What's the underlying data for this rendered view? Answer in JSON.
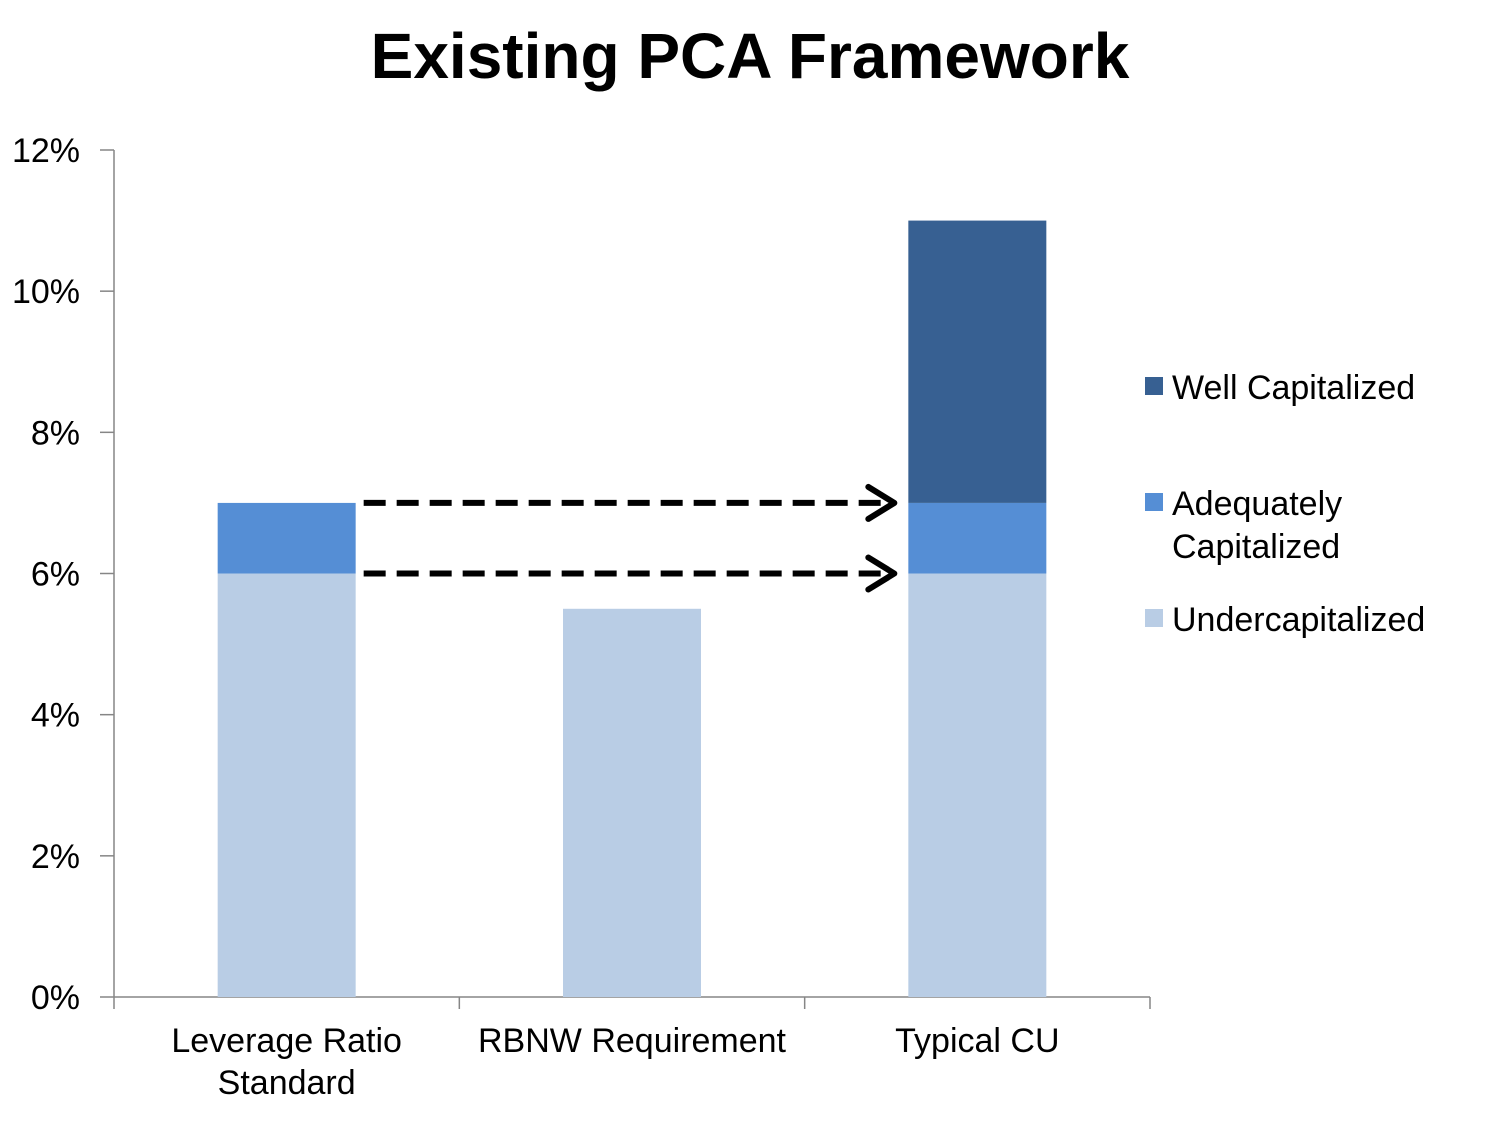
{
  "chart_data": {
    "type": "bar",
    "stacked": true,
    "title": "Existing PCA Framework",
    "categories": [
      [
        "Leverage Ratio",
        "Standard"
      ],
      [
        "RBNW Requirement"
      ],
      [
        "Typical CU"
      ]
    ],
    "series": [
      {
        "name": "Undercapitalized",
        "color": "#b9cde5",
        "values": [
          6,
          5.5,
          6
        ]
      },
      {
        "name": "Adequately Capitalized",
        "color": "#558ed5",
        "values": [
          1,
          0,
          1
        ]
      },
      {
        "name": "Well Capitalized",
        "color": "#376092",
        "values": [
          0,
          0,
          4
        ]
      }
    ],
    "legend_order": [
      {
        "series": 2,
        "lines": [
          "Well Capitalized"
        ]
      },
      {
        "series": 1,
        "lines": [
          "Adequately",
          "Capitalized"
        ]
      },
      {
        "series": 0,
        "lines": [
          "Undercapitalized"
        ]
      }
    ],
    "legend_position": "right",
    "ylim": [
      0,
      12
    ],
    "yticks": [
      0,
      2,
      4,
      6,
      8,
      10,
      12
    ],
    "ytick_labels": [
      "0%",
      "2%",
      "4%",
      "6%",
      "8%",
      "10%",
      "12%"
    ],
    "grid": false,
    "annotations": [
      {
        "type": "dashed-arrow",
        "from_category": 0,
        "to_category": 2,
        "y": 7
      },
      {
        "type": "dashed-arrow",
        "from_category": 0,
        "to_category": 2,
        "y": 6
      }
    ]
  }
}
